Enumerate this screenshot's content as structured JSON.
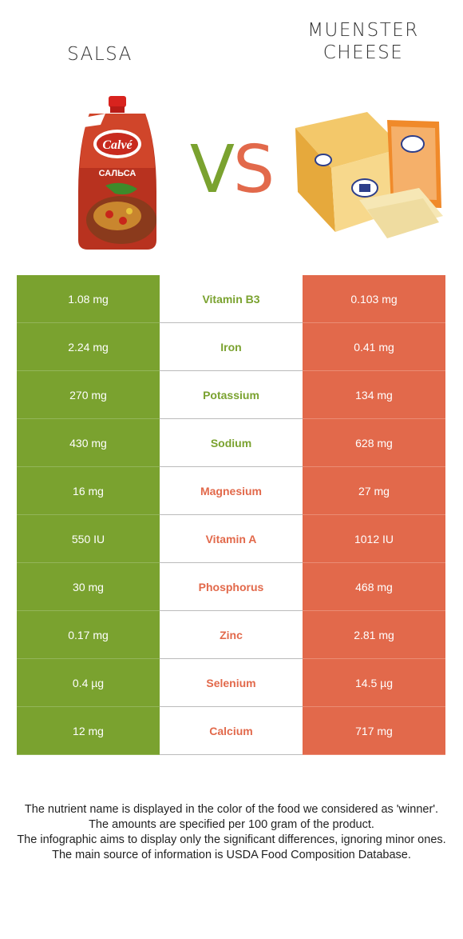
{
  "left_food": {
    "name": "SALSA",
    "image": "salsa-pouch-image"
  },
  "right_food": {
    "name": "MUENSTER\nCHEESE",
    "image": "muenster-cheese-image"
  },
  "vs": {
    "v": "V",
    "s": "S"
  },
  "colors": {
    "left": "#7aa22f",
    "right": "#e2694b"
  },
  "rows": [
    {
      "nutrient": "Vitamin B3",
      "left": "1.08 mg",
      "right": "0.103 mg",
      "winner": "left"
    },
    {
      "nutrient": "Iron",
      "left": "2.24 mg",
      "right": "0.41 mg",
      "winner": "left"
    },
    {
      "nutrient": "Potassium",
      "left": "270 mg",
      "right": "134 mg",
      "winner": "left"
    },
    {
      "nutrient": "Sodium",
      "left": "430 mg",
      "right": "628 mg",
      "winner": "left"
    },
    {
      "nutrient": "Magnesium",
      "left": "16 mg",
      "right": "27 mg",
      "winner": "right"
    },
    {
      "nutrient": "Vitamin A",
      "left": "550 IU",
      "right": "1012 IU",
      "winner": "right"
    },
    {
      "nutrient": "Phosphorus",
      "left": "30 mg",
      "right": "468 mg",
      "winner": "right"
    },
    {
      "nutrient": "Zinc",
      "left": "0.17 mg",
      "right": "2.81 mg",
      "winner": "right"
    },
    {
      "nutrient": "Selenium",
      "left": "0.4 µg",
      "right": "14.5 µg",
      "winner": "right"
    },
    {
      "nutrient": "Calcium",
      "left": "12 mg",
      "right": "717 mg",
      "winner": "right"
    }
  ],
  "footer": [
    "The nutrient name is displayed in the color of the food we considered as 'winner'.",
    "The amounts are specified per 100 gram of the product.",
    "The infographic aims to display only the significant differences, ignoring minor ones.",
    "The main source of information is USDA Food Composition Database."
  ]
}
